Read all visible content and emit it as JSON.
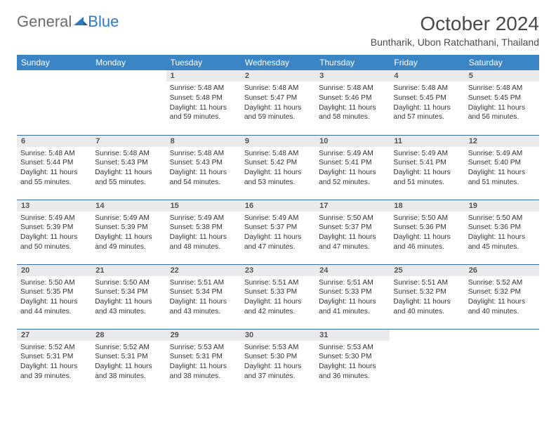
{
  "logo": {
    "part1": "General",
    "part2": "Blue"
  },
  "title": "October 2024",
  "location": "Buntharik, Ubon Ratchathani, Thailand",
  "weekdays": [
    "Sunday",
    "Monday",
    "Tuesday",
    "Wednesday",
    "Thursday",
    "Friday",
    "Saturday"
  ],
  "colors": {
    "header_bg": "#3b85c4",
    "row_border": "#3b6ea0",
    "daynum_bg": "#e9eaeb",
    "logo_gray": "#6b6b6b",
    "logo_blue": "#2c7bbf"
  },
  "weeks": [
    [
      null,
      null,
      {
        "n": "1",
        "sr": "5:48 AM",
        "ss": "5:48 PM",
        "dl": "11 hours and 59 minutes."
      },
      {
        "n": "2",
        "sr": "5:48 AM",
        "ss": "5:47 PM",
        "dl": "11 hours and 59 minutes."
      },
      {
        "n": "3",
        "sr": "5:48 AM",
        "ss": "5:46 PM",
        "dl": "11 hours and 58 minutes."
      },
      {
        "n": "4",
        "sr": "5:48 AM",
        "ss": "5:45 PM",
        "dl": "11 hours and 57 minutes."
      },
      {
        "n": "5",
        "sr": "5:48 AM",
        "ss": "5:45 PM",
        "dl": "11 hours and 56 minutes."
      }
    ],
    [
      {
        "n": "6",
        "sr": "5:48 AM",
        "ss": "5:44 PM",
        "dl": "11 hours and 55 minutes."
      },
      {
        "n": "7",
        "sr": "5:48 AM",
        "ss": "5:43 PM",
        "dl": "11 hours and 55 minutes."
      },
      {
        "n": "8",
        "sr": "5:48 AM",
        "ss": "5:43 PM",
        "dl": "11 hours and 54 minutes."
      },
      {
        "n": "9",
        "sr": "5:48 AM",
        "ss": "5:42 PM",
        "dl": "11 hours and 53 minutes."
      },
      {
        "n": "10",
        "sr": "5:49 AM",
        "ss": "5:41 PM",
        "dl": "11 hours and 52 minutes."
      },
      {
        "n": "11",
        "sr": "5:49 AM",
        "ss": "5:41 PM",
        "dl": "11 hours and 51 minutes."
      },
      {
        "n": "12",
        "sr": "5:49 AM",
        "ss": "5:40 PM",
        "dl": "11 hours and 51 minutes."
      }
    ],
    [
      {
        "n": "13",
        "sr": "5:49 AM",
        "ss": "5:39 PM",
        "dl": "11 hours and 50 minutes."
      },
      {
        "n": "14",
        "sr": "5:49 AM",
        "ss": "5:39 PM",
        "dl": "11 hours and 49 minutes."
      },
      {
        "n": "15",
        "sr": "5:49 AM",
        "ss": "5:38 PM",
        "dl": "11 hours and 48 minutes."
      },
      {
        "n": "16",
        "sr": "5:49 AM",
        "ss": "5:37 PM",
        "dl": "11 hours and 47 minutes."
      },
      {
        "n": "17",
        "sr": "5:50 AM",
        "ss": "5:37 PM",
        "dl": "11 hours and 47 minutes."
      },
      {
        "n": "18",
        "sr": "5:50 AM",
        "ss": "5:36 PM",
        "dl": "11 hours and 46 minutes."
      },
      {
        "n": "19",
        "sr": "5:50 AM",
        "ss": "5:36 PM",
        "dl": "11 hours and 45 minutes."
      }
    ],
    [
      {
        "n": "20",
        "sr": "5:50 AM",
        "ss": "5:35 PM",
        "dl": "11 hours and 44 minutes."
      },
      {
        "n": "21",
        "sr": "5:50 AM",
        "ss": "5:34 PM",
        "dl": "11 hours and 43 minutes."
      },
      {
        "n": "22",
        "sr": "5:51 AM",
        "ss": "5:34 PM",
        "dl": "11 hours and 43 minutes."
      },
      {
        "n": "23",
        "sr": "5:51 AM",
        "ss": "5:33 PM",
        "dl": "11 hours and 42 minutes."
      },
      {
        "n": "24",
        "sr": "5:51 AM",
        "ss": "5:33 PM",
        "dl": "11 hours and 41 minutes."
      },
      {
        "n": "25",
        "sr": "5:51 AM",
        "ss": "5:32 PM",
        "dl": "11 hours and 40 minutes."
      },
      {
        "n": "26",
        "sr": "5:52 AM",
        "ss": "5:32 PM",
        "dl": "11 hours and 40 minutes."
      }
    ],
    [
      {
        "n": "27",
        "sr": "5:52 AM",
        "ss": "5:31 PM",
        "dl": "11 hours and 39 minutes."
      },
      {
        "n": "28",
        "sr": "5:52 AM",
        "ss": "5:31 PM",
        "dl": "11 hours and 38 minutes."
      },
      {
        "n": "29",
        "sr": "5:53 AM",
        "ss": "5:31 PM",
        "dl": "11 hours and 38 minutes."
      },
      {
        "n": "30",
        "sr": "5:53 AM",
        "ss": "5:30 PM",
        "dl": "11 hours and 37 minutes."
      },
      {
        "n": "31",
        "sr": "5:53 AM",
        "ss": "5:30 PM",
        "dl": "11 hours and 36 minutes."
      },
      null,
      null
    ]
  ],
  "labels": {
    "sunrise": "Sunrise:",
    "sunset": "Sunset:",
    "daylight": "Daylight:"
  }
}
